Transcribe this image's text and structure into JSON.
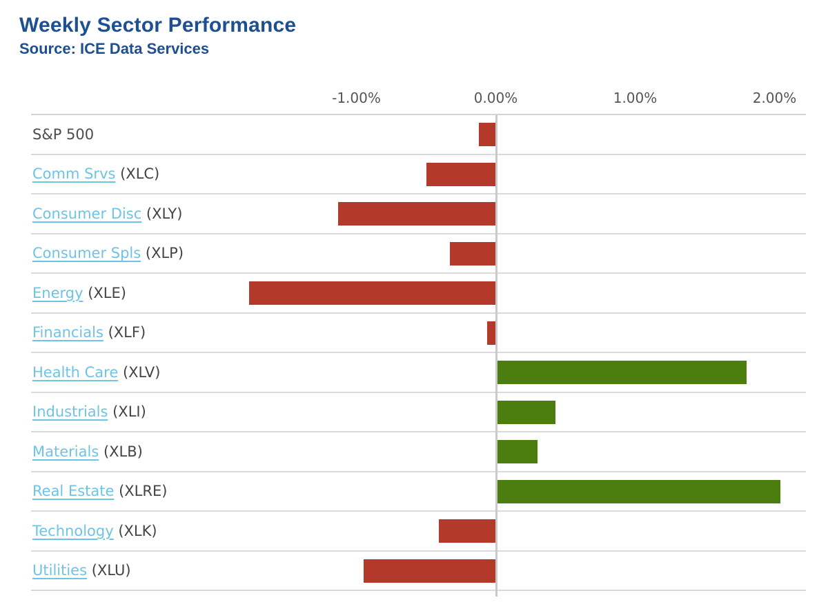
{
  "header": {
    "title": "Weekly Sector Performance",
    "source": "Source: ICE Data Services"
  },
  "colors": {
    "title_blue": "#1d4f91",
    "link_blue": "#6fc3e4",
    "negative_red": "#b3392b",
    "positive_green": "#4b7d0f",
    "ticker_gray": "#434343",
    "tick_gray": "#555555",
    "grid_gray": "#dadada",
    "zero_line_gray": "#c9c9c9"
  },
  "chart_data": {
    "type": "bar",
    "orientation": "horizontal",
    "title": "Weekly Sector Performance",
    "subtitle": "Source: ICE Data Services",
    "value_unit": "percent",
    "xlim": [
      -3.33,
      2.22
    ],
    "legend_position": "none",
    "grid": "horizontal row dividers + vertical zero line",
    "axis_ticks": [
      {
        "label": "-1.00%",
        "value": -1
      },
      {
        "label": "0.00%",
        "value": 0
      },
      {
        "label": "1.00%",
        "value": 1
      },
      {
        "label": "2.00%",
        "value": 2
      }
    ],
    "rows": [
      {
        "label": "S&P 500",
        "ticker": "",
        "value": -0.12,
        "is_link": false
      },
      {
        "label": "Comm Srvs",
        "ticker": "(XLC)",
        "value": -0.5,
        "is_link": true
      },
      {
        "label": "Consumer Disc",
        "ticker": "(XLY)",
        "value": -1.13,
        "is_link": true
      },
      {
        "label": "Consumer Spls",
        "ticker": "(XLP)",
        "value": -0.33,
        "is_link": true
      },
      {
        "label": "Energy",
        "ticker": "(XLE)",
        "value": -1.77,
        "is_link": true
      },
      {
        "label": "Financials",
        "ticker": "(XLF)",
        "value": -0.06,
        "is_link": true
      },
      {
        "label": "Health Care",
        "ticker": "(XLV)",
        "value": 1.8,
        "is_link": true
      },
      {
        "label": "Industrials",
        "ticker": "(XLI)",
        "value": 0.43,
        "is_link": true
      },
      {
        "label": "Materials",
        "ticker": "(XLB)",
        "value": 0.3,
        "is_link": true
      },
      {
        "label": "Real Estate",
        "ticker": "(XLRE)",
        "value": 2.04,
        "is_link": true
      },
      {
        "label": "Technology",
        "ticker": "(XLK)",
        "value": -0.41,
        "is_link": true
      },
      {
        "label": "Utilities",
        "ticker": "(XLU)",
        "value": -0.95,
        "is_link": true
      }
    ]
  }
}
